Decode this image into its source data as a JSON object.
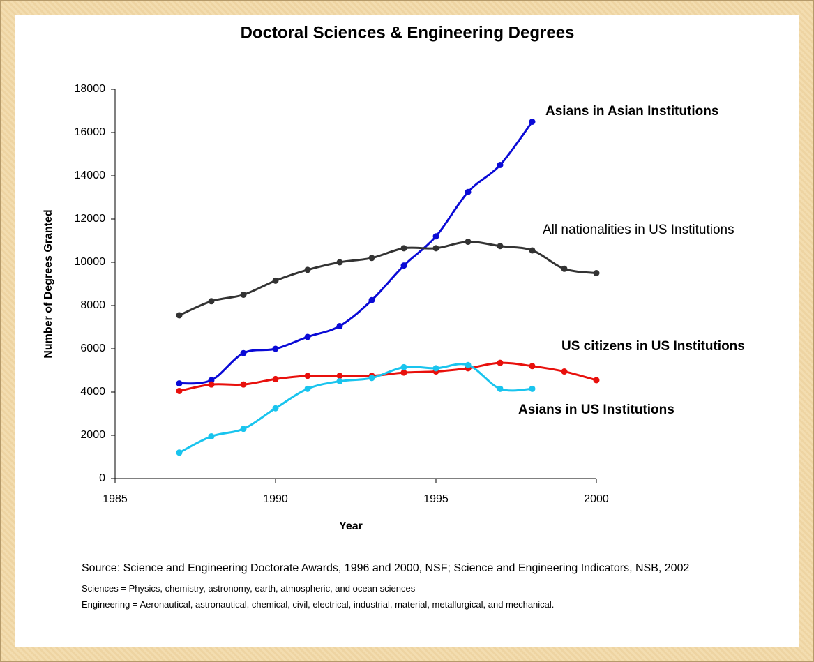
{
  "chart_data": {
    "type": "line",
    "title": "Doctoral Sciences & Engineering Degrees",
    "x_label": "Year",
    "y_label": "Number of Degrees Granted",
    "x": [
      1987,
      1988,
      1989,
      1990,
      1991,
      1992,
      1993,
      1994,
      1995,
      1996,
      1997,
      1998,
      1999,
      2000
    ],
    "xlim": [
      1985,
      2000
    ],
    "xticks": [
      1985,
      1990,
      1995,
      2000
    ],
    "ylim": [
      0,
      18000
    ],
    "yticks": [
      0,
      2000,
      4000,
      6000,
      8000,
      10000,
      12000,
      14000,
      16000,
      18000
    ],
    "smooth": true,
    "series": [
      {
        "name": "Asians in Asian Institutions",
        "color": "#0a0ad6",
        "bold": true,
        "values": [
          4400,
          4550,
          5800,
          6000,
          6550,
          7050,
          8250,
          9850,
          11200,
          13250,
          14500,
          16500,
          null,
          null
        ]
      },
      {
        "name": "All nationalities in US Institutions",
        "color": "#333333",
        "bold": false,
        "values": [
          7550,
          8200,
          8500,
          9150,
          9650,
          10000,
          10200,
          10650,
          10650,
          10950,
          10750,
          10550,
          9700,
          9500
        ]
      },
      {
        "name": "US citizens in US Institutions",
        "color": "#e8100c",
        "bold": true,
        "values": [
          4050,
          4350,
          4350,
          4600,
          4750,
          4750,
          4750,
          4900,
          4950,
          5100,
          5350,
          5200,
          4950,
          4550
        ]
      },
      {
        "name": "Asians in US Institutions",
        "color": "#19c4ee",
        "bold": true,
        "values": [
          1200,
          1950,
          2300,
          3250,
          4150,
          4500,
          4650,
          5150,
          5100,
          5250,
          4150,
          4150,
          null,
          null
        ]
      }
    ],
    "source": "Source: Science and Engineering Doctorate Awards, 1996 and 2000, NSF; Science and Engineering Indicators, NSB, 2002",
    "notes": [
      "Sciences = Physics, chemistry, astronomy, earth, atmospheric, and ocean sciences",
      "Engineering = Aeronautical, astronautical, chemical, civil, electrical, industrial, material, metallurgical, and mechanical."
    ]
  }
}
